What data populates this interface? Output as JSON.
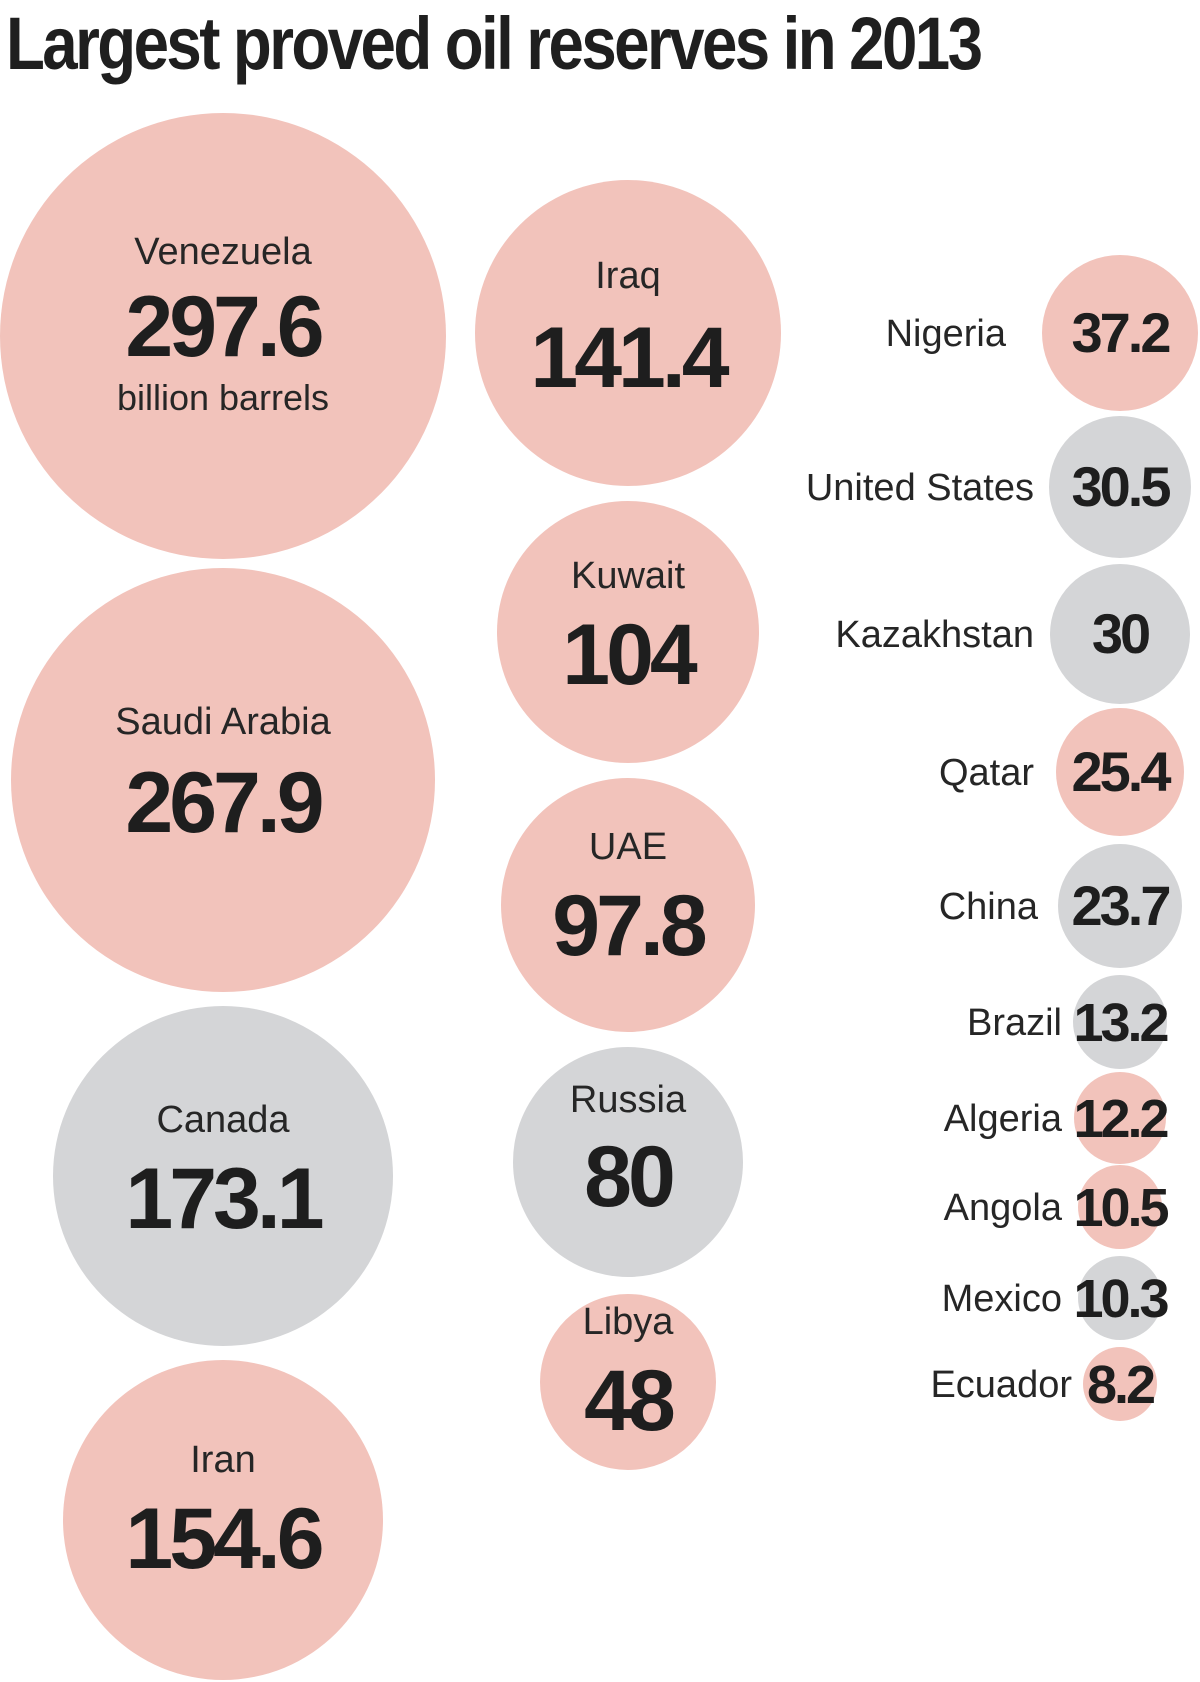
{
  "colors": {
    "pink": "#f2c3bb",
    "gray": "#d4d5d7",
    "text": "#222222"
  },
  "chart_data": {
    "type": "bubble",
    "title": "Largest proved oil reserves in 2013",
    "unit_note": "billion barrels",
    "items": [
      {
        "country": "Venezuela",
        "label": "297.6",
        "value": 297.6,
        "color": "pink"
      },
      {
        "country": "Saudi Arabia",
        "label": "267.9",
        "value": 267.9,
        "color": "pink"
      },
      {
        "country": "Canada",
        "label": "173.1",
        "value": 173.1,
        "color": "gray"
      },
      {
        "country": "Iran",
        "label": "154.6",
        "value": 154.6,
        "color": "pink"
      },
      {
        "country": "Iraq",
        "label": "141.4",
        "value": 141.4,
        "color": "pink"
      },
      {
        "country": "Kuwait",
        "label": "104",
        "value": 104,
        "color": "pink"
      },
      {
        "country": "UAE",
        "label": "97.8",
        "value": 97.8,
        "color": "pink"
      },
      {
        "country": "Russia",
        "label": "80",
        "value": 80,
        "color": "gray"
      },
      {
        "country": "Libya",
        "label": "48",
        "value": 48,
        "color": "pink"
      },
      {
        "country": "Nigeria",
        "label": "37.2",
        "value": 37.2,
        "color": "pink"
      },
      {
        "country": "United States",
        "label": "30.5",
        "value": 30.5,
        "color": "gray"
      },
      {
        "country": "Kazakhstan",
        "label": "30",
        "value": 30,
        "color": "gray"
      },
      {
        "country": "Qatar",
        "label": "25.4",
        "value": 25.4,
        "color": "pink"
      },
      {
        "country": "China",
        "label": "23.7",
        "value": 23.7,
        "color": "gray"
      },
      {
        "country": "Brazil",
        "label": "13.2",
        "value": 13.2,
        "color": "gray"
      },
      {
        "country": "Algeria",
        "label": "12.2",
        "value": 12.2,
        "color": "pink"
      },
      {
        "country": "Angola",
        "label": "10.5",
        "value": 10.5,
        "color": "pink"
      },
      {
        "country": "Mexico",
        "label": "10.3",
        "value": 10.3,
        "color": "gray"
      },
      {
        "country": "Ecuador",
        "label": "8.2",
        "value": 8.2,
        "color": "pink"
      }
    ]
  }
}
